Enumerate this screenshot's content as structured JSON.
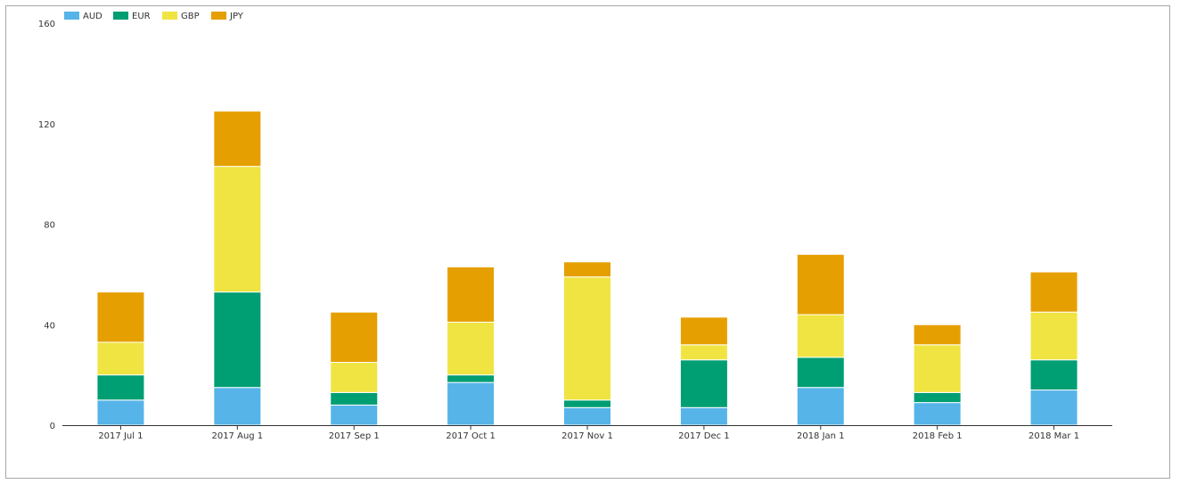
{
  "chart_data": {
    "type": "bar",
    "stacked": true,
    "categories": [
      "2017 Jul 1",
      "2017 Aug 1",
      "2017 Sep 1",
      "2017 Oct 1",
      "2017 Nov 1",
      "2017 Dec 1",
      "2018 Jan 1",
      "2018 Feb 1",
      "2018 Mar 1"
    ],
    "series": [
      {
        "name": "AUD",
        "color": "#56b4e9",
        "values": [
          10,
          15,
          8,
          17,
          7,
          7,
          15,
          9,
          14
        ]
      },
      {
        "name": "EUR",
        "color": "#009e73",
        "values": [
          10,
          38,
          5,
          3,
          3,
          19,
          12,
          4,
          12
        ]
      },
      {
        "name": "GBP",
        "color": "#f0e442",
        "values": [
          13,
          50,
          12,
          21,
          49,
          6,
          17,
          19,
          19
        ]
      },
      {
        "name": "JPY",
        "color": "#e69f00",
        "values": [
          20,
          22,
          20,
          22,
          6,
          11,
          24,
          8,
          16
        ]
      }
    ],
    "ylim": [
      0,
      160
    ],
    "yticks": [
      0,
      40,
      80,
      120,
      160
    ],
    "xlabel": "",
    "ylabel": "",
    "grid": false,
    "legend_position": "top-left"
  }
}
